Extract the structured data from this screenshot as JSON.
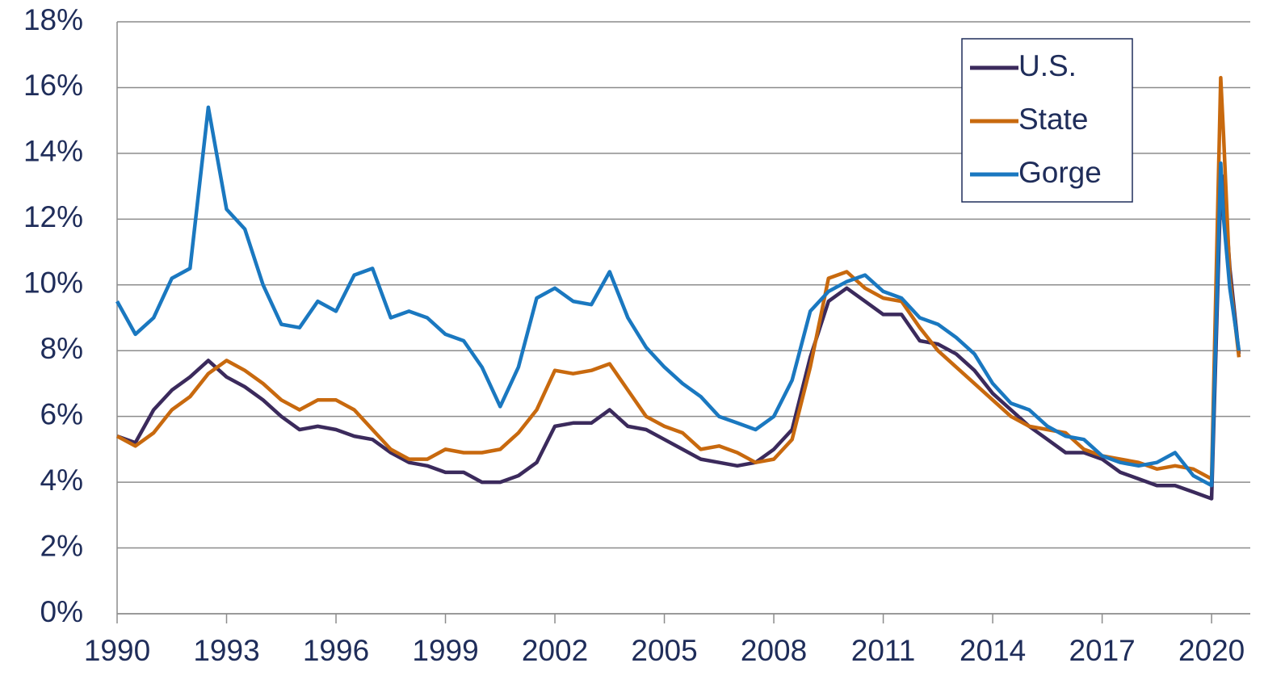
{
  "chart_data": {
    "type": "line",
    "x": [
      1990,
      1990.5,
      1991,
      1991.5,
      1992,
      1992.5,
      1993,
      1993.5,
      1994,
      1994.5,
      1995,
      1995.5,
      1996,
      1996.5,
      1997,
      1997.5,
      1998,
      1998.5,
      1999,
      1999.5,
      2000,
      2000.5,
      2001,
      2001.5,
      2002,
      2002.5,
      2003,
      2003.5,
      2004,
      2004.5,
      2005,
      2005.5,
      2006,
      2006.5,
      2007,
      2007.5,
      2008,
      2008.5,
      2009,
      2009.5,
      2010,
      2010.5,
      2011,
      2011.5,
      2012,
      2012.5,
      2013,
      2013.5,
      2014,
      2014.5,
      2015,
      2015.5,
      2016,
      2016.5,
      2017,
      2017.5,
      2018,
      2018.5,
      2019,
      2019.5,
      2020,
      2020.25,
      2020.33,
      2020.5,
      2020.75
    ],
    "series": [
      {
        "name": "U.S.",
        "color": "#3b2a5c",
        "values": [
          5.4,
          5.2,
          6.2,
          6.8,
          7.2,
          7.7,
          7.2,
          6.9,
          6.5,
          6.0,
          5.6,
          5.7,
          5.6,
          5.4,
          5.3,
          4.9,
          4.6,
          4.5,
          4.3,
          4.3,
          4.0,
          4.0,
          4.2,
          4.6,
          5.7,
          5.8,
          5.8,
          6.2,
          5.7,
          5.6,
          5.3,
          5.0,
          4.7,
          4.6,
          4.5,
          4.6,
          5.0,
          5.6,
          7.8,
          9.5,
          9.9,
          9.5,
          9.1,
          9.1,
          8.3,
          8.2,
          7.9,
          7.4,
          6.7,
          6.2,
          5.7,
          5.3,
          4.9,
          4.9,
          4.7,
          4.3,
          4.1,
          3.9,
          3.9,
          3.7,
          3.5,
          13.0,
          13.3,
          10.5,
          7.9
        ]
      },
      {
        "name": "State",
        "color": "#c8690e",
        "values": [
          5.4,
          5.1,
          5.5,
          6.2,
          6.6,
          7.3,
          7.7,
          7.4,
          7.0,
          6.5,
          6.2,
          6.5,
          6.5,
          6.2,
          5.6,
          5.0,
          4.7,
          4.7,
          5.0,
          4.9,
          4.9,
          5.0,
          5.5,
          6.2,
          7.4,
          7.3,
          7.4,
          7.6,
          6.8,
          6.0,
          5.7,
          5.5,
          5.0,
          5.1,
          4.9,
          4.6,
          4.7,
          5.3,
          7.5,
          10.2,
          10.4,
          9.9,
          9.6,
          9.5,
          8.7,
          8.0,
          7.5,
          7.0,
          6.5,
          6.0,
          5.7,
          5.6,
          5.5,
          5.0,
          4.8,
          4.7,
          4.6,
          4.4,
          4.5,
          4.4,
          4.1,
          16.3,
          14.5,
          10.2,
          7.8
        ]
      },
      {
        "name": "Gorge",
        "color": "#1a78c0",
        "values": [
          9.5,
          8.5,
          9.0,
          10.2,
          10.5,
          15.4,
          12.3,
          11.7,
          10.0,
          8.8,
          8.7,
          9.5,
          9.2,
          10.3,
          10.5,
          9.0,
          9.2,
          9.0,
          8.5,
          8.3,
          7.5,
          6.3,
          7.5,
          9.6,
          9.9,
          9.5,
          9.4,
          10.4,
          9.0,
          8.1,
          7.5,
          7.0,
          6.6,
          6.0,
          5.8,
          5.6,
          6.0,
          7.1,
          9.2,
          9.8,
          10.1,
          10.3,
          9.8,
          9.6,
          9.0,
          8.8,
          8.4,
          7.9,
          7.0,
          6.4,
          6.2,
          5.7,
          5.4,
          5.3,
          4.8,
          4.6,
          4.5,
          4.6,
          4.9,
          4.2,
          3.9,
          13.7,
          12.0,
          9.9,
          8.0
        ]
      }
    ],
    "xlim": [
      1990,
      2021.06
    ],
    "xticks": [
      1990,
      1993,
      1996,
      1999,
      2002,
      2005,
      2008,
      2011,
      2014,
      2017,
      2020
    ],
    "ylim": [
      0,
      18
    ],
    "yticks": [
      {
        "value": 0,
        "label": "0%"
      },
      {
        "value": 2,
        "label": "2%"
      },
      {
        "value": 4,
        "label": "4%"
      },
      {
        "value": 6,
        "label": "6%"
      },
      {
        "value": 8,
        "label": "8%"
      },
      {
        "value": 10,
        "label": "10%"
      },
      {
        "value": 12,
        "label": "12%"
      },
      {
        "value": 14,
        "label": "14%"
      },
      {
        "value": 16,
        "label": "16%"
      },
      {
        "value": 18,
        "label": "18%"
      }
    ],
    "grid": true,
    "legend": "upper right"
  }
}
